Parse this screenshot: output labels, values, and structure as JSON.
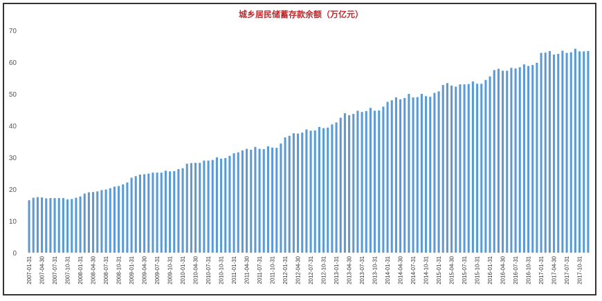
{
  "chart_data": {
    "type": "bar",
    "title": "城乡居民储蓄存款余额（万亿元）",
    "xlabel": "",
    "ylabel": "",
    "ylim": [
      0,
      70
    ],
    "yticks": [
      0,
      10,
      20,
      30,
      40,
      50,
      60,
      70
    ],
    "grid": false,
    "legend": "none",
    "bar_color": "#5b9bd5",
    "title_color": "#c0282d",
    "start_month": "2007-01",
    "tick_labels": [
      "2007-01-31",
      "2007-04-30",
      "2007-07-31",
      "2007-10-31",
      "2008-01-31",
      "2008-04-30",
      "2008-07-31",
      "2008-10-31",
      "2009-01-31",
      "2009-04-30",
      "2009-07-31",
      "2009-10-31",
      "2010-01-31",
      "2010-04-30",
      "2010-07-31",
      "2010-10-31",
      "2011-01-31",
      "2011-04-30",
      "2011-07-31",
      "2011-10-31",
      "2012-01-31",
      "2012-04-30",
      "2012-07-31",
      "2012-10-31",
      "2013-01-31",
      "2013-04-30",
      "2013-07-31",
      "2013-10-31",
      "2014-01-31",
      "2014-04-30",
      "2014-07-31",
      "2014-10-31",
      "2015-01-31",
      "2015-04-30",
      "2015-07-31",
      "2015-10-31",
      "2016-01-31",
      "2016-04-30",
      "2016-07-31",
      "2016-10-31",
      "2017-01-31",
      "2017-04-30",
      "2017-07-31",
      "2017-10-31"
    ],
    "values": [
      16.5,
      17.3,
      17.5,
      17.4,
      17.1,
      17.2,
      17.2,
      17.2,
      17.2,
      16.8,
      16.9,
      17.3,
      17.7,
      18.6,
      19.0,
      19.1,
      19.3,
      19.7,
      19.9,
      20.3,
      20.8,
      21.0,
      21.5,
      22.1,
      23.6,
      24.1,
      24.6,
      24.7,
      24.9,
      25.2,
      25.2,
      25.2,
      25.8,
      25.6,
      25.7,
      26.3,
      26.6,
      28.0,
      28.2,
      28.3,
      28.3,
      29.0,
      29.0,
      29.2,
      30.0,
      29.6,
      29.8,
      30.5,
      31.3,
      31.6,
      32.2,
      32.7,
      32.4,
      33.3,
      32.7,
      32.6,
      33.5,
      33.1,
      33.0,
      34.4,
      36.3,
      36.8,
      37.6,
      37.5,
      37.8,
      38.8,
      38.4,
      38.5,
      39.6,
      39.2,
      39.4,
      40.4,
      41.0,
      42.5,
      43.9,
      43.3,
      43.7,
      44.7,
      44.3,
      44.6,
      45.6,
      44.7,
      44.8,
      46.0,
      47.5,
      48.0,
      48.9,
      48.3,
      48.7,
      50.0,
      48.9,
      49.0,
      50.0,
      49.3,
      49.1,
      50.3,
      50.8,
      52.8,
      53.4,
      52.6,
      52.3,
      53.0,
      53.0,
      53.1,
      53.9,
      53.2,
      53.2,
      54.4,
      55.5,
      57.5,
      57.9,
      57.3,
      57.3,
      58.2,
      58.0,
      58.4,
      59.3,
      58.8,
      59.1,
      59.8,
      62.9,
      63.0,
      63.5,
      62.4,
      62.6,
      63.6,
      62.9,
      63.1,
      64.2,
      63.4,
      63.4,
      63.5
    ]
  }
}
